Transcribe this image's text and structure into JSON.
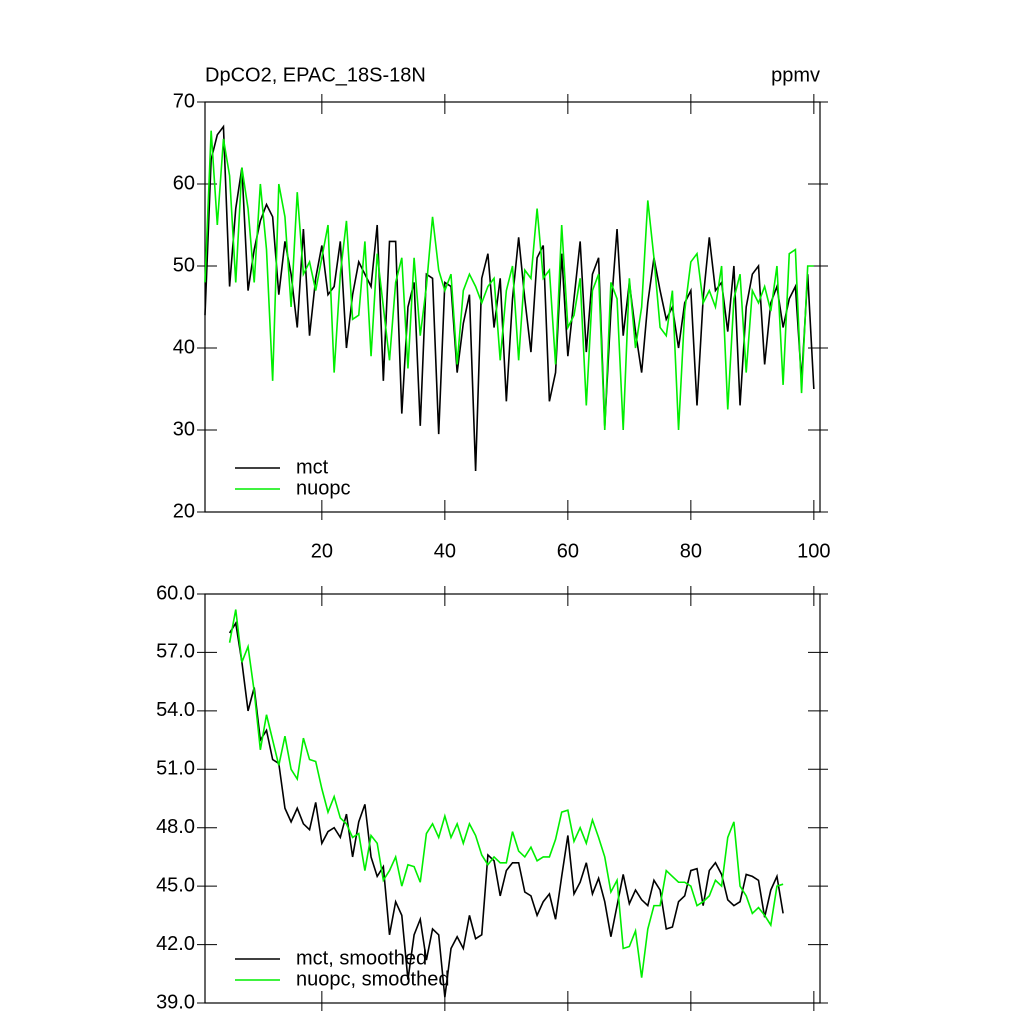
{
  "chart_data": [
    {
      "type": "line",
      "title": "DpCO2, EPAC_18S-18N",
      "units": "ppmv",
      "x": [
        1,
        2,
        3,
        4,
        5,
        6,
        7,
        8,
        9,
        10,
        11,
        12,
        13,
        14,
        15,
        16,
        17,
        18,
        19,
        20,
        21,
        22,
        23,
        24,
        25,
        26,
        27,
        28,
        29,
        30,
        31,
        32,
        33,
        34,
        35,
        36,
        37,
        38,
        39,
        40,
        41,
        42,
        43,
        44,
        45,
        46,
        47,
        48,
        49,
        50,
        51,
        52,
        53,
        54,
        55,
        56,
        57,
        58,
        59,
        60,
        61,
        62,
        63,
        64,
        65,
        66,
        67,
        68,
        69,
        70,
        71,
        72,
        73,
        74,
        75,
        76,
        77,
        78,
        79,
        80,
        81,
        82,
        83,
        84,
        85,
        86,
        87,
        88,
        89,
        90,
        91,
        92,
        93,
        94,
        95,
        96,
        97,
        98,
        99,
        100
      ],
      "series": [
        {
          "name": "mct",
          "color": "#000000",
          "values": [
            44,
            63,
            66,
            67,
            47.5,
            57,
            62,
            47,
            52,
            55.5,
            57.5,
            56,
            46.5,
            53,
            49,
            42.5,
            54.5,
            41.5,
            48.5,
            52.5,
            46.5,
            47.5,
            53,
            40,
            46.5,
            50.5,
            49,
            47.5,
            55,
            36,
            53,
            53,
            32,
            45,
            48,
            30.5,
            49,
            48.5,
            29.5,
            48,
            47.5,
            37,
            43,
            46.5,
            25,
            48.5,
            51.5,
            42.5,
            48.5,
            33.5,
            46,
            53.5,
            46,
            39.5,
            51,
            52.5,
            33.5,
            37,
            51.5,
            39,
            46,
            53,
            39.5,
            49,
            51,
            30.5,
            44.5,
            54.5,
            41.5,
            48,
            42,
            37,
            45.5,
            51,
            47,
            43.5,
            45,
            40,
            45.5,
            47,
            33,
            46,
            53.5,
            47,
            48,
            42,
            50,
            33,
            45,
            49,
            50,
            38,
            45.5,
            47.5,
            42.5,
            46,
            47.5,
            36,
            49,
            35
          ]
        },
        {
          "name": "nuopc",
          "color": "#00ee00",
          "values": [
            48,
            66.5,
            55,
            65.5,
            61,
            48,
            62,
            57,
            48,
            60,
            52,
            36,
            60,
            56,
            45,
            59,
            49,
            50.5,
            47,
            51,
            55,
            37,
            49,
            55.5,
            43.5,
            44,
            53,
            39,
            51.5,
            45,
            38.5,
            48,
            51,
            37.5,
            51,
            41.5,
            47.5,
            56,
            49.5,
            47,
            49,
            38,
            47,
            49,
            47.5,
            45.5,
            47.5,
            48.5,
            38.5,
            47,
            50,
            38.5,
            49.5,
            48.5,
            57,
            48.5,
            49.5,
            38,
            55,
            42.5,
            44,
            48.5,
            33,
            47,
            49,
            30,
            48,
            46,
            30,
            48.5,
            40,
            45,
            58,
            51,
            42.5,
            41.5,
            47,
            30,
            44.5,
            50.5,
            51.5,
            45.5,
            47,
            45,
            50,
            32.5,
            46,
            49,
            37,
            47,
            45.5,
            47.5,
            44.5,
            50,
            35.5,
            51.5,
            52,
            34.5,
            50,
            50
          ]
        }
      ],
      "xlim": [
        1,
        101
      ],
      "xticks": [
        20,
        40,
        60,
        80,
        100
      ],
      "show_xtick_labels": true,
      "ylim": [
        20,
        70
      ],
      "yticks": [
        20,
        30,
        40,
        50,
        60,
        70
      ]
    },
    {
      "type": "line",
      "x": [
        5,
        6,
        7,
        8,
        9,
        10,
        11,
        12,
        13,
        14,
        15,
        16,
        17,
        18,
        19,
        20,
        21,
        22,
        23,
        24,
        25,
        26,
        27,
        28,
        29,
        30,
        31,
        32,
        33,
        34,
        35,
        36,
        37,
        38,
        39,
        40,
        41,
        42,
        43,
        44,
        45,
        46,
        47,
        48,
        49,
        50,
        51,
        52,
        53,
        54,
        55,
        56,
        57,
        58,
        59,
        60,
        61,
        62,
        63,
        64,
        65,
        66,
        67,
        68,
        69,
        70,
        71,
        72,
        73,
        74,
        75,
        76,
        77,
        78,
        79,
        80,
        81,
        82,
        83,
        84,
        85,
        86,
        87,
        88,
        89,
        90,
        91,
        92,
        93,
        94,
        95
      ],
      "series": [
        {
          "name": "mct, smoothed",
          "color": "#000000",
          "values": [
            58,
            58.5,
            56.5,
            54,
            55.2,
            52.5,
            53,
            51.5,
            51.3,
            49,
            48.3,
            49,
            48.2,
            47.9,
            49.3,
            47.2,
            47.8,
            48,
            47.5,
            48.7,
            46.5,
            48.3,
            49.2,
            46.5,
            45.5,
            46,
            42.5,
            44.2,
            43.5,
            40.2,
            42.5,
            43.3,
            41.2,
            42.8,
            42.5,
            39.3,
            41.8,
            42.4,
            41.8,
            43.5,
            42.3,
            42.5,
            46.6,
            46.3,
            44.5,
            45.8,
            46.2,
            46.2,
            44.7,
            44.5,
            43.5,
            44.2,
            44.6,
            43.3,
            45.5,
            47.6,
            44.6,
            45.2,
            46.2,
            44.6,
            45.4,
            44.2,
            42.4,
            44,
            45.6,
            44.1,
            44.8,
            44.3,
            44,
            45.3,
            44.8,
            42.8,
            42.9,
            44.2,
            44.5,
            45.8,
            45.9,
            44,
            45.8,
            46.2,
            45.6,
            44.3,
            44,
            44.2,
            45.6,
            45.5,
            45.3,
            43.4,
            44.8,
            45.5,
            43.6
          ]
        },
        {
          "name": "nuopc, smoothed",
          "color": "#00ee00",
          "values": [
            57.5,
            59.2,
            56.5,
            57.3,
            55,
            52,
            53.8,
            52.5,
            51.2,
            52.7,
            51,
            50.5,
            52.6,
            51.5,
            51.4,
            50,
            48.8,
            49.6,
            48.5,
            48.2,
            47.5,
            47.7,
            45.8,
            47.6,
            47.2,
            45.3,
            45.8,
            46.5,
            45,
            46.1,
            46,
            45.2,
            47.7,
            48.2,
            47.5,
            48.6,
            47.5,
            48.2,
            47.2,
            48.2,
            47.6,
            46.6,
            46.1,
            46.5,
            46.2,
            46.2,
            47.8,
            46.8,
            46.5,
            47,
            46.3,
            46.5,
            46.5,
            47.4,
            48.8,
            48.9,
            47.3,
            48,
            47.2,
            48.4,
            47.5,
            46.5,
            44.7,
            45.3,
            41.8,
            41.9,
            42.7,
            40.3,
            42.8,
            44,
            44,
            45.8,
            45.5,
            45.2,
            45.2,
            45,
            44,
            44.2,
            44.5,
            45.3,
            45,
            47.5,
            48.3,
            45,
            44.5,
            43.6,
            43.9,
            43.5,
            43,
            45,
            45.1
          ]
        }
      ],
      "xlim": [
        1,
        101
      ],
      "xticks": [
        20,
        40,
        60,
        80,
        100
      ],
      "show_xtick_labels": false,
      "ylim": [
        39,
        60
      ],
      "yticks": [
        {
          "value": 39,
          "label": "39.0"
        },
        {
          "value": 42,
          "label": "42.0"
        },
        {
          "value": 45,
          "label": "45.0"
        },
        {
          "value": 48,
          "label": "48.0"
        },
        {
          "value": 51,
          "label": "51.0"
        },
        {
          "value": 54,
          "label": "54.0"
        },
        {
          "value": 57,
          "label": "57.0"
        },
        {
          "value": 60,
          "label": "60.0"
        }
      ]
    }
  ]
}
